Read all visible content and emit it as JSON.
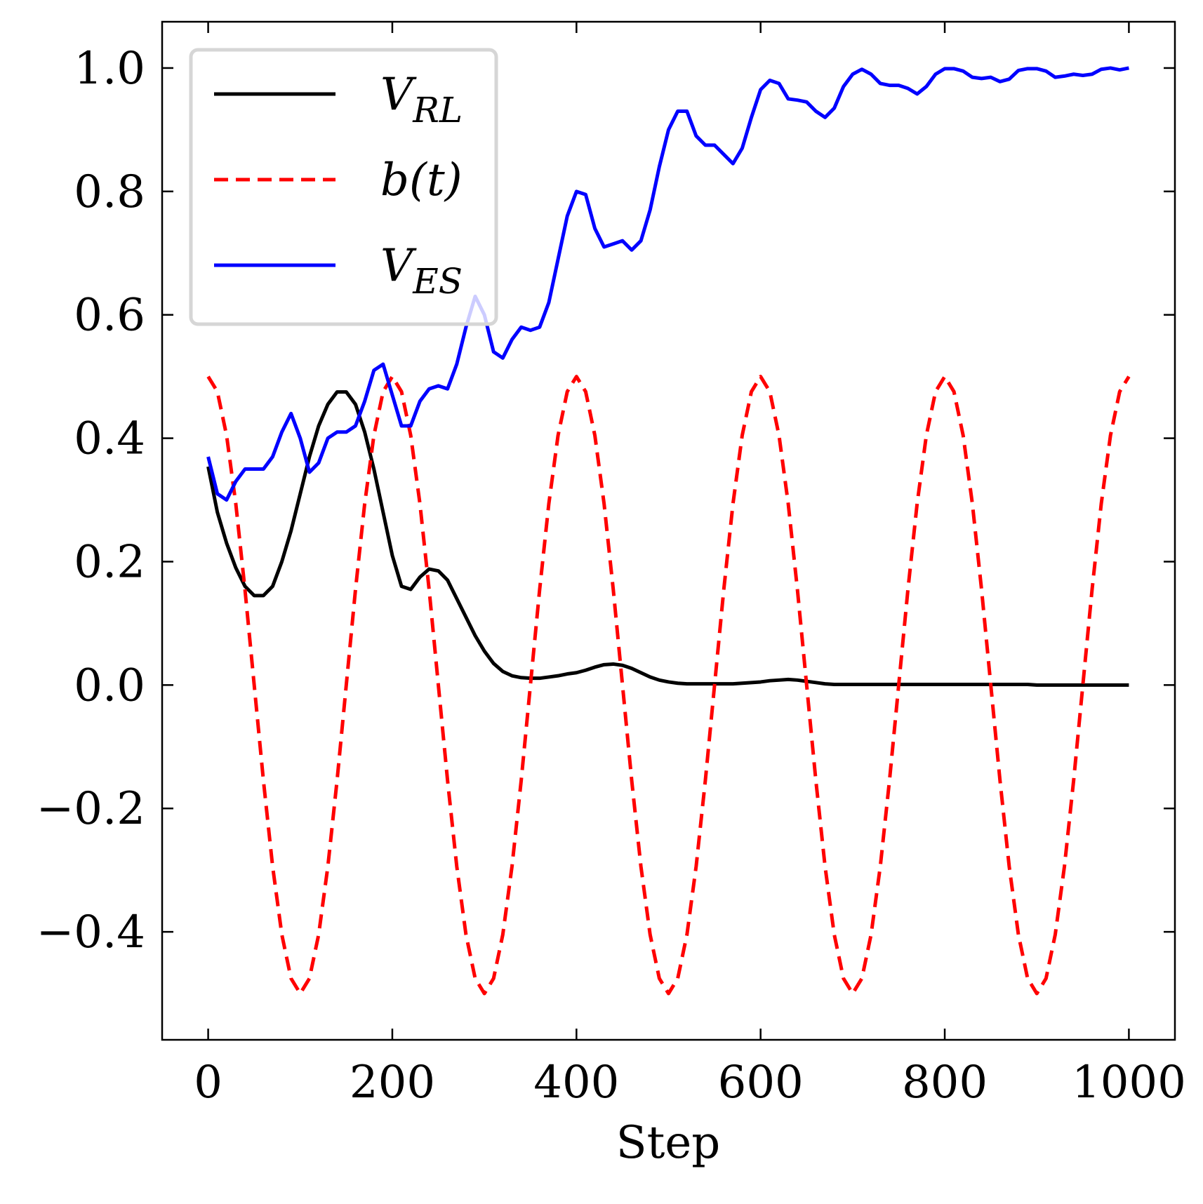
{
  "chart_data": {
    "type": "line",
    "x_label": "Step",
    "xlim": [
      -50,
      1050
    ],
    "ylim": [
      -0.575,
      1.075
    ],
    "xticks": [
      0,
      200,
      400,
      600,
      800,
      1000
    ],
    "yticks": [
      {
        "value": -0.4,
        "label": "−0.4"
      },
      {
        "value": -0.2,
        "label": "−0.2"
      },
      {
        "value": 0,
        "label": "0.0"
      },
      0.2,
      0.4,
      0.6,
      0.8,
      {
        "value": 1,
        "label": "1.0"
      }
    ],
    "legend": "upper left",
    "x": [
      0,
      10,
      20,
      30,
      40,
      50,
      60,
      70,
      80,
      90,
      100,
      110,
      120,
      130,
      140,
      150,
      160,
      170,
      180,
      190,
      200,
      210,
      220,
      230,
      240,
      250,
      260,
      270,
      280,
      290,
      300,
      310,
      320,
      330,
      340,
      350,
      360,
      370,
      380,
      390,
      400,
      410,
      420,
      430,
      440,
      450,
      460,
      470,
      480,
      490,
      500,
      510,
      520,
      530,
      540,
      550,
      560,
      570,
      580,
      590,
      600,
      610,
      620,
      630,
      640,
      650,
      660,
      670,
      680,
      690,
      700,
      710,
      720,
      730,
      740,
      750,
      760,
      770,
      780,
      790,
      800,
      810,
      820,
      830,
      840,
      850,
      860,
      870,
      880,
      890,
      900,
      910,
      920,
      930,
      940,
      950,
      960,
      970,
      980,
      990,
      1000
    ],
    "series": [
      {
        "name": "V_RL",
        "color": "#000000",
        "dash": false,
        "values": [
          0.354,
          0.28,
          0.23,
          0.19,
          0.16,
          0.145,
          0.145,
          0.16,
          0.2,
          0.25,
          0.31,
          0.37,
          0.42,
          0.455,
          0.475,
          0.475,
          0.455,
          0.41,
          0.35,
          0.28,
          0.21,
          0.16,
          0.155,
          0.175,
          0.188,
          0.185,
          0.17,
          0.14,
          0.11,
          0.08,
          0.055,
          0.035,
          0.022,
          0.015,
          0.012,
          0.011,
          0.011,
          0.013,
          0.015,
          0.018,
          0.02,
          0.024,
          0.029,
          0.033,
          0.034,
          0.032,
          0.027,
          0.02,
          0.013,
          0.008,
          0.005,
          0.003,
          0.002,
          0.002,
          0.002,
          0.002,
          0.002,
          0.002,
          0.003,
          0.004,
          0.005,
          0.007,
          0.008,
          0.009,
          0.008,
          0.006,
          0.004,
          0.002,
          0.001,
          0.001,
          0.001,
          0.001,
          0.001,
          0.001,
          0.001,
          0.001,
          0.001,
          0.001,
          0.001,
          0.001,
          0.001,
          0.001,
          0.001,
          0.001,
          0.001,
          0.001,
          0.001,
          0.001,
          0.001,
          0.001,
          0,
          0,
          0,
          0,
          0,
          0,
          0,
          0,
          0,
          0,
          0
        ]
      },
      {
        "name": "b(t)",
        "color": "#ff0000",
        "dash": true,
        "values": [
          0.5,
          0.4755,
          0.4045,
          0.2939,
          0.1545,
          0,
          -0.1545,
          -0.2939,
          -0.4045,
          -0.4755,
          -0.5,
          -0.4755,
          -0.4045,
          -0.2939,
          -0.1545,
          0,
          0.1545,
          0.2939,
          0.4045,
          0.4755,
          0.5,
          0.4755,
          0.4045,
          0.2939,
          0.1545,
          0,
          -0.1545,
          -0.2939,
          -0.4045,
          -0.4755,
          -0.5,
          -0.4755,
          -0.4045,
          -0.2939,
          -0.1545,
          0,
          0.1545,
          0.2939,
          0.4045,
          0.4755,
          0.5,
          0.4755,
          0.4045,
          0.2939,
          0.1545,
          0,
          -0.1545,
          -0.2939,
          -0.4045,
          -0.4755,
          -0.5,
          -0.4755,
          -0.4045,
          -0.2939,
          -0.1545,
          0,
          0.1545,
          0.2939,
          0.4045,
          0.4755,
          0.5,
          0.4755,
          0.4045,
          0.2939,
          0.1545,
          0,
          -0.1545,
          -0.2939,
          -0.4045,
          -0.4755,
          -0.5,
          -0.4755,
          -0.4045,
          -0.2939,
          -0.1545,
          0,
          0.1545,
          0.2939,
          0.4045,
          0.4755,
          0.5,
          0.4755,
          0.4045,
          0.2939,
          0.1545,
          0,
          -0.1545,
          -0.2939,
          -0.4045,
          -0.4755,
          -0.5,
          -0.4755,
          -0.4045,
          -0.2939,
          -0.1545,
          0,
          0.1545,
          0.2939,
          0.4045,
          0.4755,
          0.5
        ]
      },
      {
        "name": "V_ES",
        "color": "#0000ff",
        "dash": false,
        "values": [
          0.37,
          0.31,
          0.3,
          0.33,
          0.35,
          0.35,
          0.35,
          0.37,
          0.41,
          0.44,
          0.4,
          0.345,
          0.36,
          0.4,
          0.41,
          0.41,
          0.42,
          0.46,
          0.51,
          0.52,
          0.47,
          0.42,
          0.42,
          0.46,
          0.48,
          0.485,
          0.48,
          0.52,
          0.58,
          0.63,
          0.6,
          0.54,
          0.53,
          0.56,
          0.58,
          0.575,
          0.58,
          0.62,
          0.69,
          0.76,
          0.8,
          0.795,
          0.74,
          0.71,
          0.715,
          0.72,
          0.705,
          0.72,
          0.77,
          0.84,
          0.9,
          0.93,
          0.93,
          0.89,
          0.875,
          0.875,
          0.86,
          0.845,
          0.87,
          0.92,
          0.965,
          0.98,
          0.975,
          0.95,
          0.948,
          0.945,
          0.93,
          0.92,
          0.935,
          0.97,
          0.99,
          0.998,
          0.99,
          0.975,
          0.972,
          0.972,
          0.967,
          0.958,
          0.97,
          0.99,
          0.999,
          0.999,
          0.995,
          0.985,
          0.983,
          0.985,
          0.978,
          0.982,
          0.996,
          0.999,
          0.999,
          0.995,
          0.985,
          0.987,
          0.99,
          0.988,
          0.99,
          0.998,
          1.0,
          0.997,
          1.0
        ]
      }
    ]
  }
}
